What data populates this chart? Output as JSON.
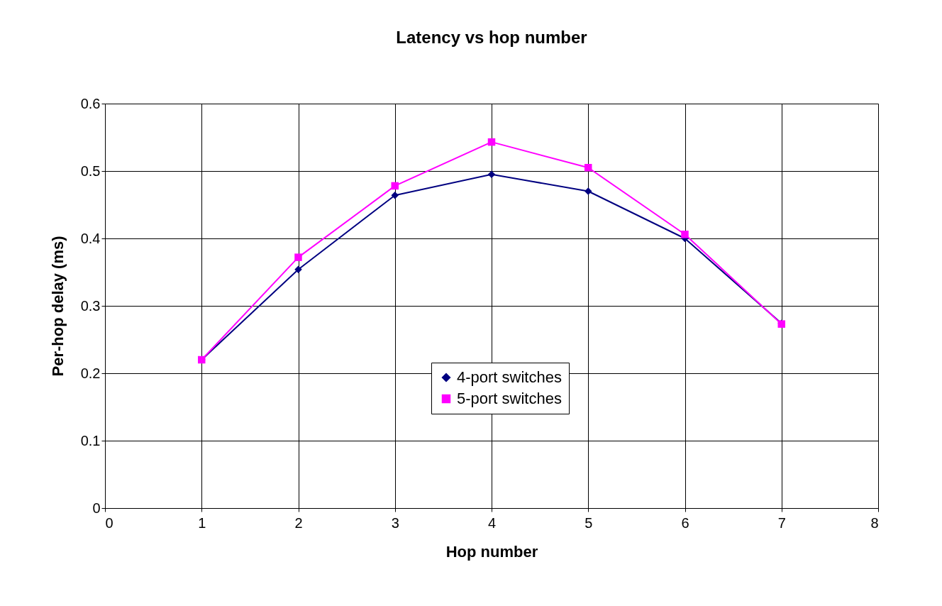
{
  "chart_data": {
    "type": "line",
    "title": "Latency vs hop number",
    "xlabel": "Hop number",
    "ylabel": "Per-hop delay (ms)",
    "x": [
      1,
      2,
      3,
      4,
      5,
      6,
      7
    ],
    "series": [
      {
        "name": "4-port switches",
        "color": "#000080",
        "marker": "diamond",
        "values": [
          0.22,
          0.354,
          0.464,
          0.495,
          0.47,
          0.4,
          0.274
        ]
      },
      {
        "name": "5-port switches",
        "color": "#ff00ff",
        "marker": "square",
        "values": [
          0.22,
          0.372,
          0.478,
          0.543,
          0.505,
          0.406,
          0.273
        ]
      }
    ],
    "xlim": [
      0,
      8
    ],
    "xticks": [
      0,
      1,
      2,
      3,
      4,
      5,
      6,
      7,
      8
    ],
    "ylim": [
      0,
      0.6
    ],
    "yticks": [
      0,
      0.1,
      0.2,
      0.3,
      0.4,
      0.5,
      0.6
    ],
    "grid": true,
    "legend": "bottom",
    "line_style": "solid"
  }
}
